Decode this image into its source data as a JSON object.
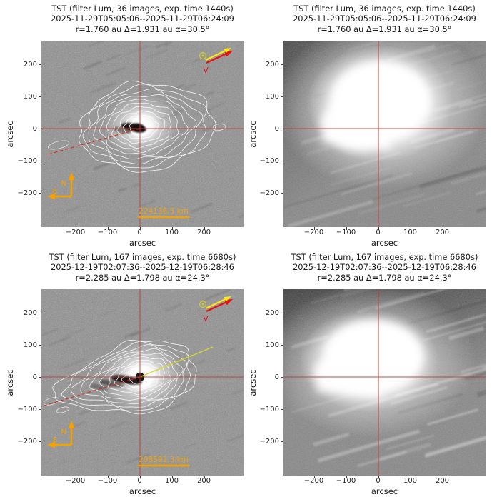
{
  "figure": {
    "telescope": "TST",
    "filter": "Lum"
  },
  "panels": [
    {
      "key": "top-left",
      "variant": "contour-enhanced",
      "title_lines": [
        "TST (filter Lum, 36 images, exp. time 1440s)",
        "2025-11-29T05:05:06--2025-11-29T06:24:09",
        "r=1.760 au Δ=1.931 au α=30.5°"
      ],
      "annotations": {
        "scale_bar_label": "224136.5 km",
        "compass_north": "N",
        "compass_east": "E",
        "sun_symbol": "☉",
        "velocity_label": "V"
      }
    },
    {
      "key": "top-right",
      "variant": "direct-image",
      "title_lines": [
        "TST (filter Lum, 36 images, exp. time 1440s)",
        "2025-11-29T05:05:06--2025-11-29T06:24:09",
        "r=1.760 au Δ=1.931 au α=30.5°"
      ]
    },
    {
      "key": "bottom-left",
      "variant": "contour-enhanced",
      "title_lines": [
        "TST (filter Lum, 167 images, exp. time 6680s)",
        "2025-12-19T02:07:36--2025-12-19T06:28:46",
        "r=2.285 au Δ=1.798 au α=24.3°"
      ],
      "annotations": {
        "scale_bar_label": "208591.3 km",
        "compass_north": "N",
        "compass_east": "E",
        "sun_symbol": "☉",
        "velocity_label": "V"
      }
    },
    {
      "key": "bottom-right",
      "variant": "direct-image",
      "title_lines": [
        "TST (filter Lum, 167 images, exp. time 6680s)",
        "2025-12-19T02:07:36--2025-12-19T06:28:46",
        "r=2.285 au Δ=1.798 au α=24.3°"
      ]
    }
  ],
  "axes": {
    "x_label": "arcsec",
    "y_label": "arcsec",
    "x_ticks": [
      "−200",
      "−100",
      "0",
      "100",
      "200"
    ],
    "y_ticks": [
      "200",
      "100",
      "0",
      "−100",
      "−200"
    ]
  },
  "colors": {
    "annotation_orange": "#F5A200",
    "crosshair_red": "#C53B2F",
    "velocity_arrow_red": "#E81010",
    "sun_arrow_yellow": "#FFE81A",
    "tail_line_red": "#D12F23",
    "sun_direction_line_yellow": "#D8D832",
    "contour_white": "#FFFFFF"
  },
  "chart_data": [
    {
      "type": "heatmap",
      "title": "TST (filter Lum, 36 images, exp. time 1440s) | 2025-11-29T05:05:06--2025-11-29T06:24:09 | r=1.760 au Δ=1.931 au α=30.5°",
      "xlabel": "arcsec",
      "ylabel": "arcsec",
      "xlim": [
        -307,
        322
      ],
      "ylim": [
        -307,
        273
      ],
      "content": "comet coma with white isophote contours, crosshair at (0,0), dust tail toward lower-left, scale bar 224136.5 km, N/E compass, Sun and velocity vectors toward upper-right"
    },
    {
      "type": "heatmap",
      "title": "TST (filter Lum, 36 images, exp. time 1440s) | 2025-11-29T05:05:06--2025-11-29T06:24:09 | r=1.760 au Δ=1.931 au α=30.5°",
      "xlabel": "arcsec",
      "ylabel": "arcsec",
      "xlim": [
        -296,
        333
      ],
      "ylim": [
        -307,
        273
      ],
      "content": "unprocessed stacked image: saturated white coma centered near (0,30) with red crosshair and diagonal star-trail streaks"
    },
    {
      "type": "heatmap",
      "title": "TST (filter Lum, 167 images, exp. time 6680s) | 2025-12-19T02:07:36--2025-12-19T06:28:46 | r=2.285 au Δ=1.798 au α=24.3°",
      "xlabel": "arcsec",
      "ylabel": "arcsec",
      "xlim": [
        -307,
        322
      ],
      "ylim": [
        -307,
        273
      ],
      "content": "comet coma with elongated isophote contours tilted toward lower-left, red tail line, yellow sunward line toward upper-right, scale bar 208591.3 km, N/E compass, Sun and velocity vectors"
    },
    {
      "type": "heatmap",
      "title": "TST (filter Lum, 167 images, exp. time 6680s) | 2025-12-19T02:07:36--2025-12-19T06:28:46 | r=2.285 au Δ=1.798 au α=24.3°",
      "xlabel": "arcsec",
      "ylabel": "arcsec",
      "xlim": [
        -296,
        333
      ],
      "ylim": [
        -307,
        273
      ],
      "content": "unprocessed stacked image: saturated white coma slightly left of center with red crosshair and many diagonal star-trail streaks"
    }
  ]
}
